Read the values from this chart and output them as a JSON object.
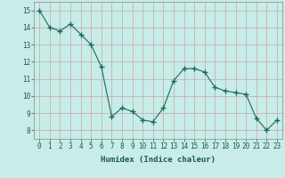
{
  "x": [
    0,
    1,
    2,
    3,
    4,
    5,
    6,
    7,
    8,
    9,
    10,
    11,
    12,
    13,
    14,
    15,
    16,
    17,
    18,
    19,
    20,
    21,
    22,
    23
  ],
  "y": [
    15,
    14,
    13.8,
    14.2,
    13.6,
    13.0,
    11.7,
    8.8,
    9.3,
    9.1,
    8.6,
    8.5,
    9.3,
    10.9,
    11.6,
    11.6,
    11.4,
    10.5,
    10.3,
    10.2,
    10.1,
    8.7,
    8.0,
    8.6
  ],
  "line_color": "#1a6b5a",
  "marker": "+",
  "marker_size": 4,
  "bg_color": "#c8ece8",
  "grid_color": "#c4a8a8",
  "xlabel": "Humidex (Indice chaleur)",
  "xlim": [
    -0.5,
    23.5
  ],
  "ylim": [
    7.5,
    15.5
  ],
  "yticks": [
    8,
    9,
    10,
    11,
    12,
    13,
    14,
    15
  ],
  "xticks": [
    0,
    1,
    2,
    3,
    4,
    5,
    6,
    7,
    8,
    9,
    10,
    11,
    12,
    13,
    14,
    15,
    16,
    17,
    18,
    19,
    20,
    21,
    22,
    23
  ],
  "label_fontsize": 6.5,
  "tick_fontsize": 5.5
}
